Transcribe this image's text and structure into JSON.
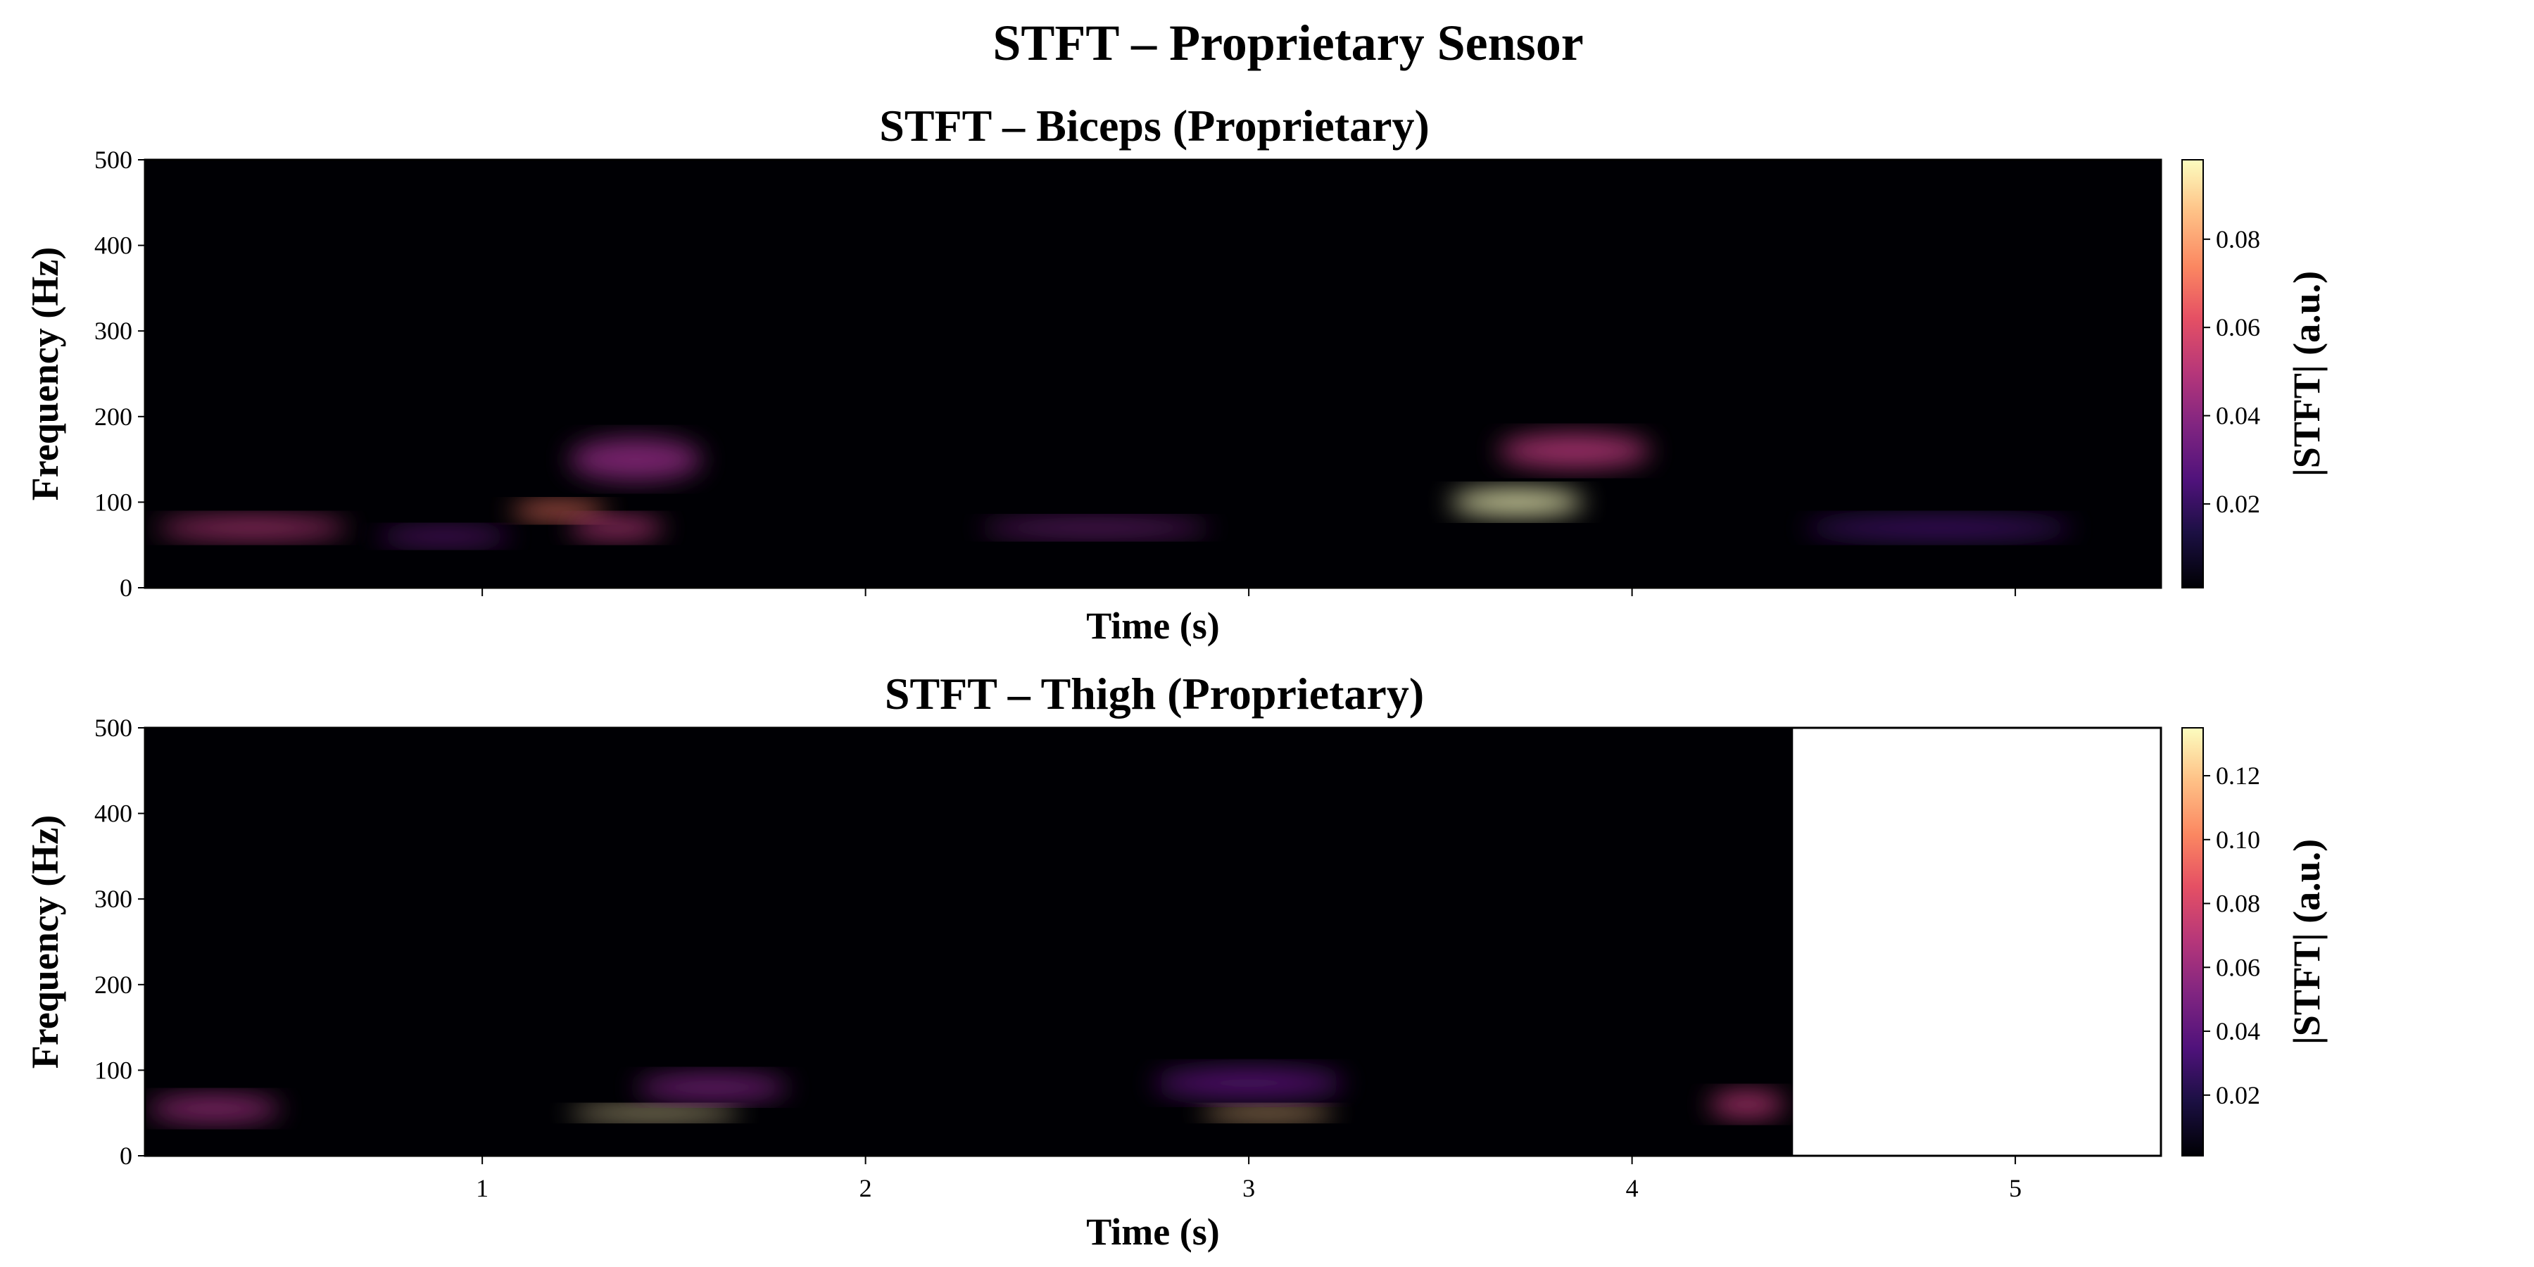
{
  "suptitle": "STFT – Proprietary Sensor",
  "colormap": "magma",
  "colors": {
    "background": "#000004",
    "empty_region": "#ffffff",
    "frame": "#000000"
  },
  "chart_data": [
    {
      "type": "heatmap",
      "title": "STFT – Biceps (Proprietary)",
      "xlabel": "Time (s)",
      "ylabel": "Frequency (Hz)",
      "xlim": [
        0.12,
        5.38
      ],
      "ylim": [
        0,
        500
      ],
      "data_xlim": [
        0.12,
        5.38
      ],
      "x_ticks": [
        1,
        2,
        3,
        4,
        5
      ],
      "x_tick_labels_shown": false,
      "y_ticks": [
        0,
        100,
        200,
        300,
        400,
        500
      ],
      "y_tick_labels": [
        "0",
        "100",
        "200",
        "300",
        "400",
        "500"
      ],
      "colorbar": {
        "label": "|STFT| (a.u.)",
        "range": [
          0.001,
          0.098
        ],
        "ticks": [
          0.02,
          0.04,
          0.06,
          0.08
        ],
        "tick_labels": [
          "0.02",
          "0.04",
          "0.06",
          "0.08"
        ]
      },
      "energy_regions": [
        {
          "t_center": 0.4,
          "t_width": 0.5,
          "f_center": 70,
          "f_width": 25,
          "magnitude": 0.05
        },
        {
          "t_center": 0.9,
          "t_width": 0.35,
          "f_center": 60,
          "f_width": 20,
          "magnitude": 0.03
        },
        {
          "t_center": 1.2,
          "t_width": 0.25,
          "f_center": 90,
          "f_width": 20,
          "magnitude": 0.07
        },
        {
          "t_center": 1.4,
          "t_width": 0.35,
          "f_center": 150,
          "f_width": 50,
          "magnitude": 0.04
        },
        {
          "t_center": 1.35,
          "t_width": 0.25,
          "f_center": 70,
          "f_width": 25,
          "magnitude": 0.05
        },
        {
          "t_center": 2.6,
          "t_width": 0.6,
          "f_center": 70,
          "f_width": 20,
          "magnitude": 0.035
        },
        {
          "t_center": 3.7,
          "t_width": 0.35,
          "f_center": 100,
          "f_width": 30,
          "magnitude": 0.098
        },
        {
          "t_center": 3.85,
          "t_width": 0.4,
          "f_center": 160,
          "f_width": 40,
          "magnitude": 0.05
        },
        {
          "t_center": 4.8,
          "t_width": 0.7,
          "f_center": 70,
          "f_width": 25,
          "magnitude": 0.025
        }
      ]
    },
    {
      "type": "heatmap",
      "title": "STFT – Thigh (Proprietary)",
      "xlabel": "Time (s)",
      "ylabel": "Frequency (Hz)",
      "xlim": [
        0.12,
        5.38
      ],
      "ylim": [
        0,
        500
      ],
      "data_xlim": [
        0.12,
        4.42
      ],
      "x_ticks": [
        1,
        2,
        3,
        4,
        5
      ],
      "x_tick_labels": [
        "1",
        "2",
        "3",
        "4",
        "5"
      ],
      "y_ticks": [
        0,
        100,
        200,
        300,
        400,
        500
      ],
      "y_tick_labels": [
        "0",
        "100",
        "200",
        "300",
        "400",
        "500"
      ],
      "colorbar": {
        "label": "|STFT| (a.u.)",
        "range": [
          0.001,
          0.135
        ],
        "ticks": [
          0.02,
          0.04,
          0.06,
          0.08,
          0.1,
          0.12
        ],
        "tick_labels": [
          "0.02",
          "0.04",
          "0.06",
          "0.08",
          "0.10",
          "0.12"
        ]
      },
      "energy_regions": [
        {
          "t_center": 0.3,
          "t_width": 0.35,
          "f_center": 55,
          "f_width": 30,
          "magnitude": 0.06
        },
        {
          "t_center": 1.45,
          "t_width": 0.45,
          "f_center": 50,
          "f_width": 15,
          "magnitude": 0.13
        },
        {
          "t_center": 1.6,
          "t_width": 0.4,
          "f_center": 80,
          "f_width": 30,
          "magnitude": 0.05
        },
        {
          "t_center": 3.05,
          "t_width": 0.35,
          "f_center": 50,
          "f_width": 15,
          "magnitude": 0.12
        },
        {
          "t_center": 3.0,
          "t_width": 0.5,
          "f_center": 85,
          "f_width": 35,
          "magnitude": 0.04
        },
        {
          "t_center": 4.3,
          "t_width": 0.2,
          "f_center": 60,
          "f_width": 30,
          "magnitude": 0.07
        }
      ]
    }
  ]
}
